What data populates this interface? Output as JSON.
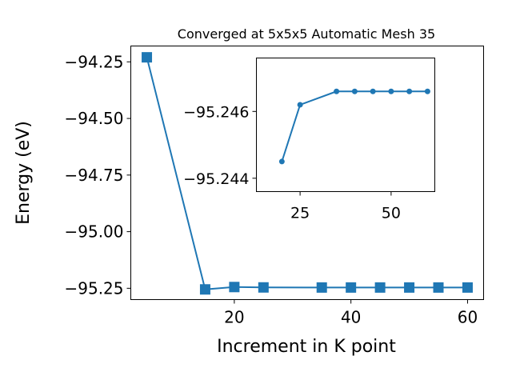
{
  "chart_data": [
    {
      "type": "line",
      "title": "Converged at 5x5x5 Automatic Mesh 35",
      "xlabel": "Increment in K point",
      "ylabel": "Energy (eV)",
      "xlim": [
        2.25,
        62.75
      ],
      "ylim": [
        -95.3,
        -94.18
      ],
      "xticks": [
        20,
        40,
        60
      ],
      "xtick_labels": [
        "20",
        "40",
        "60"
      ],
      "yticks": [
        -94.25,
        -94.5,
        -94.75,
        -95.0,
        -95.25
      ],
      "ytick_labels": [
        "−94.25",
        "−94.50",
        "−94.75",
        "−95.00",
        "−95.25"
      ],
      "series": [
        {
          "marker": "square",
          "color": "#1f77b4",
          "x": [
            5,
            15,
            20,
            25,
            35,
            40,
            45,
            50,
            55,
            60
          ],
          "y": [
            -94.23,
            -95.255,
            -95.2445,
            -95.2462,
            -95.2466,
            -95.2466,
            -95.2466,
            -95.2466,
            -95.2466,
            -95.2466
          ]
        }
      ]
    },
    {
      "type": "line",
      "role": "inset",
      "xlim": [
        13.0,
        62.0
      ],
      "ylim": [
        -95.2436,
        -95.2476
      ],
      "xticks": [
        25,
        50
      ],
      "xtick_labels": [
        "25",
        "50"
      ],
      "yticks": [
        -95.246,
        -95.244
      ],
      "ytick_labels": [
        "−95.246",
        "−95.244"
      ],
      "series": [
        {
          "marker": "circle",
          "color": "#1f77b4",
          "x": [
            20,
            25,
            35,
            40,
            45,
            50,
            55,
            60
          ],
          "y": [
            -95.2445,
            -95.2462,
            -95.2466,
            -95.2466,
            -95.2466,
            -95.2466,
            -95.2466,
            -95.2466
          ]
        }
      ]
    }
  ]
}
